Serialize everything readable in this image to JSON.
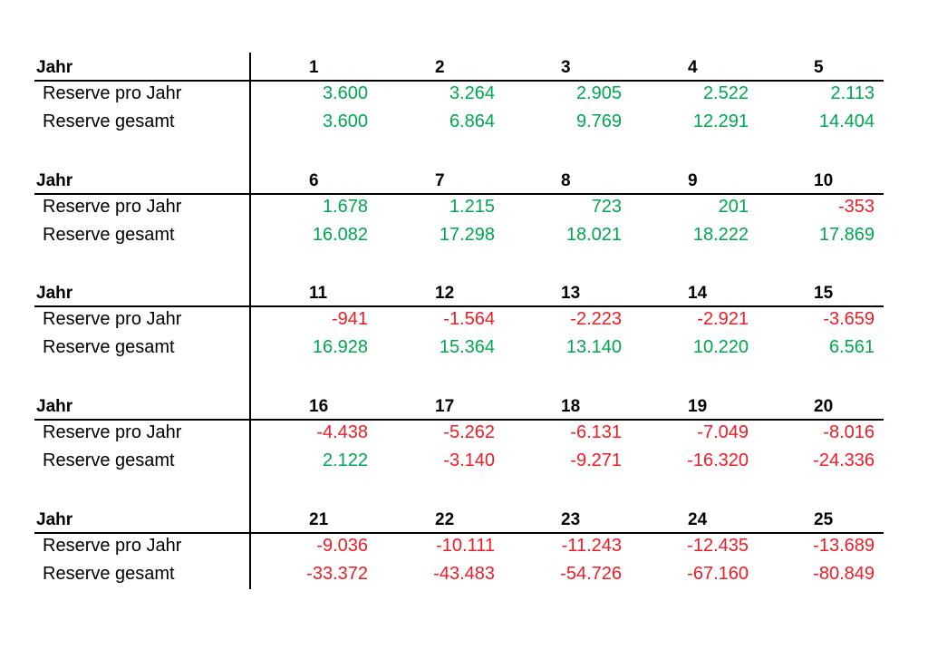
{
  "row_header": "Jahr",
  "row_labels": [
    "Reserve pro Jahr",
    "Reserve gesamt"
  ],
  "colors": {
    "positive": "#00a651",
    "negative": "#ee1c25"
  },
  "blocks": [
    {
      "years": [
        "1",
        "2",
        "3",
        "4",
        "5"
      ],
      "pro_jahr": [
        "3.600",
        "3.264",
        "2.905",
        "2.522",
        "2.113"
      ],
      "gesamt": [
        "3.600",
        "6.864",
        "9.769",
        "12.291",
        "14.404"
      ]
    },
    {
      "years": [
        "6",
        "7",
        "8",
        "9",
        "10"
      ],
      "pro_jahr": [
        "1.678",
        "1.215",
        "723",
        "201",
        "-353"
      ],
      "gesamt": [
        "16.082",
        "17.298",
        "18.021",
        "18.222",
        "17.869"
      ]
    },
    {
      "years": [
        "11",
        "12",
        "13",
        "14",
        "15"
      ],
      "pro_jahr": [
        "-941",
        "-1.564",
        "-2.223",
        "-2.921",
        "-3.659"
      ],
      "gesamt": [
        "16.928",
        "15.364",
        "13.140",
        "10.220",
        "6.561"
      ]
    },
    {
      "years": [
        "16",
        "17",
        "18",
        "19",
        "20"
      ],
      "pro_jahr": [
        "-4.438",
        "-5.262",
        "-6.131",
        "-7.049",
        "-8.016"
      ],
      "gesamt": [
        "2.122",
        "-3.140",
        "-9.271",
        "-16.320",
        "-24.336"
      ]
    },
    {
      "years": [
        "21",
        "22",
        "23",
        "24",
        "25"
      ],
      "pro_jahr": [
        "-9.036",
        "-10.111",
        "-11.243",
        "-12.435",
        "-13.689"
      ],
      "gesamt": [
        "-33.372",
        "-43.483",
        "-54.726",
        "-67.160",
        "-80.849"
      ]
    }
  ]
}
